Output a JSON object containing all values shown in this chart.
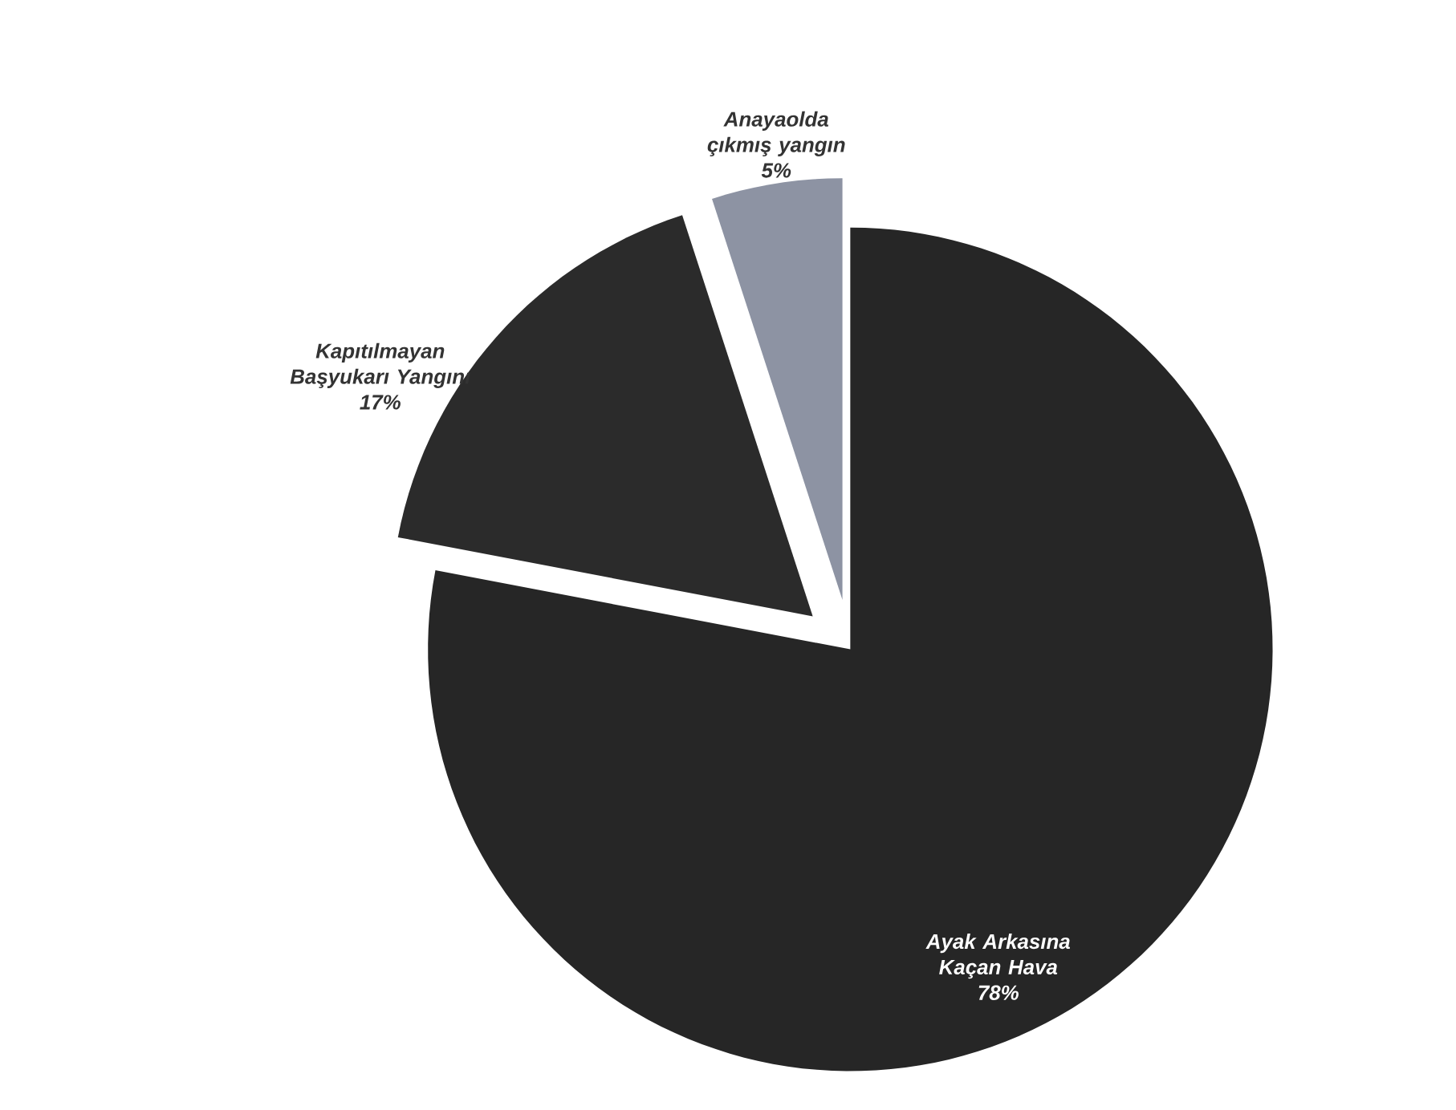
{
  "chart_data": {
    "type": "pie",
    "categories": [
      "Ayak Arkasına Kaçan Hava",
      "Kapıtılmayan Başyukarı Yangını",
      "Anayaolda çıkmış yangın"
    ],
    "values": [
      78,
      17,
      5
    ],
    "value_labels": [
      "78%",
      "17%",
      "5%"
    ],
    "colors": [
      "#262626",
      "#2b2b2b",
      "#8d93a3"
    ]
  }
}
